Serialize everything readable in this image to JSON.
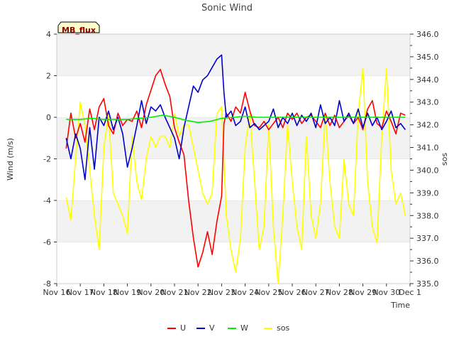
{
  "chart_data": {
    "type": "line",
    "title": "Sonic Wind",
    "site_label": "MB_flux",
    "xlabel": "Time",
    "ylabel_left": "Wind (m/s)",
    "ylabel_right": "sos",
    "x_ticks": [
      "Nov 16",
      "Nov 17",
      "Nov 18",
      "Nov 19",
      "Nov 20",
      "Nov 21",
      "Nov 22",
      "Nov 23",
      "Nov 24",
      "Nov 25",
      "Nov 26",
      "Nov 27",
      "Nov 28",
      "Nov 29",
      "Nov 30",
      "Dec 1"
    ],
    "xlim": [
      0,
      15
    ],
    "ylim_left": [
      -8,
      4
    ],
    "ylim_right": [
      335.0,
      346.0
    ],
    "y_ticks_left": [
      "-8",
      "-6",
      "-4",
      "-2",
      "0",
      "2",
      "4"
    ],
    "y_ticks_right": [
      "335.0",
      "336.0",
      "337.0",
      "338.0",
      "339.0",
      "340.0",
      "341.0",
      "342.0",
      "343.0",
      "344.0",
      "345.0",
      "346.0"
    ],
    "grid": "horizontal bands",
    "legend_position": "bottom",
    "series": [
      {
        "name": "U",
        "axis": "left",
        "color": "#ff0000",
        "x": [
          0.4,
          0.6,
          0.8,
          1.0,
          1.2,
          1.4,
          1.6,
          1.8,
          2.0,
          2.2,
          2.4,
          2.6,
          2.8,
          3.0,
          3.2,
          3.4,
          3.6,
          3.8,
          4.0,
          4.2,
          4.4,
          4.6,
          4.8,
          5.0,
          5.2,
          5.4,
          5.6,
          5.8,
          6.0,
          6.2,
          6.4,
          6.6,
          6.8,
          7.0,
          7.1,
          7.2,
          7.4,
          7.6,
          7.8,
          8.0,
          8.2,
          8.4,
          8.6,
          8.8,
          9.0,
          9.2,
          9.4,
          9.6,
          9.8,
          10.0,
          10.2,
          10.4,
          10.6,
          10.8,
          11.0,
          11.2,
          11.4,
          11.6,
          11.8,
          12.0,
          12.2,
          12.4,
          12.6,
          12.8,
          13.0,
          13.2,
          13.4,
          13.6,
          13.8,
          14.0,
          14.2,
          14.4,
          14.6,
          14.8
        ],
        "y": [
          -1.5,
          0.2,
          -1.0,
          -0.3,
          -1.2,
          0.4,
          -0.6,
          0.5,
          0.9,
          -0.4,
          -0.8,
          0.2,
          -0.4,
          -0.1,
          -0.2,
          0.3,
          -0.5,
          0.6,
          1.3,
          2.0,
          2.3,
          1.6,
          1.0,
          -0.5,
          -1.2,
          -1.8,
          -4.0,
          -5.8,
          -7.2,
          -6.5,
          -5.5,
          -6.6,
          -5.0,
          -3.8,
          -0.3,
          0.2,
          -0.2,
          0.5,
          0.2,
          1.2,
          0.3,
          -0.4,
          -0.5,
          -0.2,
          -0.6,
          -0.3,
          0.0,
          -0.5,
          0.2,
          -0.1,
          0.2,
          -0.3,
          0.0,
          0.1,
          -0.2,
          -0.5,
          0.2,
          -0.4,
          0.1,
          -0.5,
          -0.2,
          0.1,
          -0.3,
          0.0,
          -0.6,
          0.4,
          0.8,
          -0.3,
          -0.5,
          0.3,
          -0.2,
          -0.8,
          0.2,
          0.1
        ]
      },
      {
        "name": "V",
        "axis": "left",
        "color": "#0000cc",
        "x": [
          0.4,
          0.6,
          0.8,
          1.0,
          1.2,
          1.4,
          1.6,
          1.8,
          2.0,
          2.2,
          2.4,
          2.6,
          2.8,
          3.0,
          3.2,
          3.4,
          3.6,
          3.8,
          4.0,
          4.2,
          4.4,
          4.6,
          4.8,
          5.0,
          5.2,
          5.4,
          5.6,
          5.8,
          6.0,
          6.2,
          6.4,
          6.6,
          6.8,
          7.0,
          7.1,
          7.2,
          7.4,
          7.6,
          7.8,
          8.0,
          8.2,
          8.4,
          8.6,
          8.8,
          9.0,
          9.2,
          9.4,
          9.6,
          9.8,
          10.0,
          10.2,
          10.4,
          10.6,
          10.8,
          11.0,
          11.2,
          11.4,
          11.6,
          11.8,
          12.0,
          12.2,
          12.4,
          12.6,
          12.8,
          13.0,
          13.2,
          13.4,
          13.6,
          13.8,
          14.0,
          14.2,
          14.4,
          14.6,
          14.8
        ],
        "y": [
          -1.0,
          -2.0,
          -0.8,
          -1.5,
          -3.0,
          -0.5,
          -2.5,
          0.0,
          -0.4,
          0.3,
          -0.6,
          0.0,
          -0.8,
          -2.4,
          -1.5,
          -0.4,
          0.8,
          -0.3,
          0.5,
          0.3,
          0.6,
          0.0,
          -0.5,
          -1.0,
          -2.0,
          -0.5,
          0.5,
          1.5,
          1.2,
          1.8,
          2.0,
          2.4,
          2.8,
          3.0,
          1.2,
          0.0,
          0.3,
          -0.4,
          -0.2,
          0.5,
          -0.5,
          -0.3,
          -0.6,
          -0.4,
          -0.2,
          0.4,
          -0.5,
          0.0,
          -0.3,
          0.2,
          -0.4,
          0.1,
          -0.2,
          0.2,
          -0.5,
          0.6,
          -0.3,
          0.0,
          -0.4,
          0.8,
          -0.2,
          0.2,
          -0.3,
          0.4,
          -0.5,
          0.2,
          -0.4,
          0.0,
          -0.6,
          -0.2,
          0.3,
          -0.5,
          -0.3,
          -0.6
        ]
      },
      {
        "name": "W",
        "axis": "left",
        "color": "#00ee00",
        "x": [
          0.4,
          1.0,
          1.5,
          2.0,
          2.5,
          3.0,
          3.5,
          4.0,
          4.5,
          5.0,
          5.5,
          6.0,
          6.5,
          7.0,
          7.5,
          8.0,
          8.5,
          9.0,
          9.5,
          10.0,
          10.5,
          11.0,
          11.5,
          12.0,
          12.5,
          13.0,
          13.5,
          14.0,
          14.5,
          14.8
        ],
        "y": [
          -0.1,
          -0.1,
          -0.05,
          -0.1,
          -0.1,
          -0.1,
          -0.05,
          0.0,
          0.1,
          0.0,
          -0.15,
          -0.25,
          -0.2,
          -0.05,
          0.0,
          0.05,
          0.0,
          0.0,
          0.0,
          0.0,
          0.0,
          0.0,
          0.0,
          0.0,
          0.0,
          0.0,
          0.0,
          0.0,
          0.0,
          0.0
        ]
      },
      {
        "name": "sos",
        "axis": "right",
        "color": "#ffff00",
        "x": [
          0.4,
          0.6,
          0.8,
          1.0,
          1.2,
          1.4,
          1.6,
          1.8,
          2.0,
          2.2,
          2.4,
          2.6,
          2.8,
          3.0,
          3.2,
          3.4,
          3.6,
          3.8,
          4.0,
          4.2,
          4.4,
          4.6,
          4.8,
          5.0,
          5.2,
          5.4,
          5.6,
          5.8,
          6.0,
          6.2,
          6.4,
          6.6,
          6.8,
          7.0,
          7.2,
          7.4,
          7.6,
          7.8,
          8.0,
          8.2,
          8.4,
          8.6,
          8.8,
          9.0,
          9.2,
          9.4,
          9.6,
          9.8,
          10.0,
          10.2,
          10.4,
          10.6,
          10.8,
          11.0,
          11.2,
          11.4,
          11.6,
          11.8,
          12.0,
          12.2,
          12.4,
          12.6,
          12.8,
          13.0,
          13.2,
          13.4,
          13.6,
          13.8,
          14.0,
          14.2,
          14.4,
          14.6,
          14.8
        ],
        "y": [
          338.8,
          337.8,
          340.5,
          343.0,
          342.0,
          340.0,
          338.0,
          336.5,
          341.0,
          342.5,
          339.0,
          338.5,
          338.0,
          337.2,
          341.5,
          339.5,
          338.7,
          340.5,
          341.5,
          341.0,
          341.5,
          341.5,
          341.0,
          342.5,
          341.5,
          342.0,
          342.0,
          341.0,
          340.0,
          339.0,
          338.5,
          339.0,
          342.5,
          342.8,
          338.0,
          336.5,
          335.5,
          337.0,
          341.0,
          342.5,
          339.5,
          336.5,
          337.5,
          342.0,
          337.5,
          335.0,
          338.0,
          342.0,
          339.5,
          337.5,
          336.5,
          341.5,
          338.0,
          337.0,
          338.5,
          342.5,
          339.5,
          337.5,
          337.0,
          340.5,
          338.5,
          338.0,
          342.5,
          344.5,
          339.5,
          337.5,
          336.8,
          341.5,
          344.5,
          340.0,
          338.5,
          339.0,
          338.0
        ]
      }
    ]
  }
}
